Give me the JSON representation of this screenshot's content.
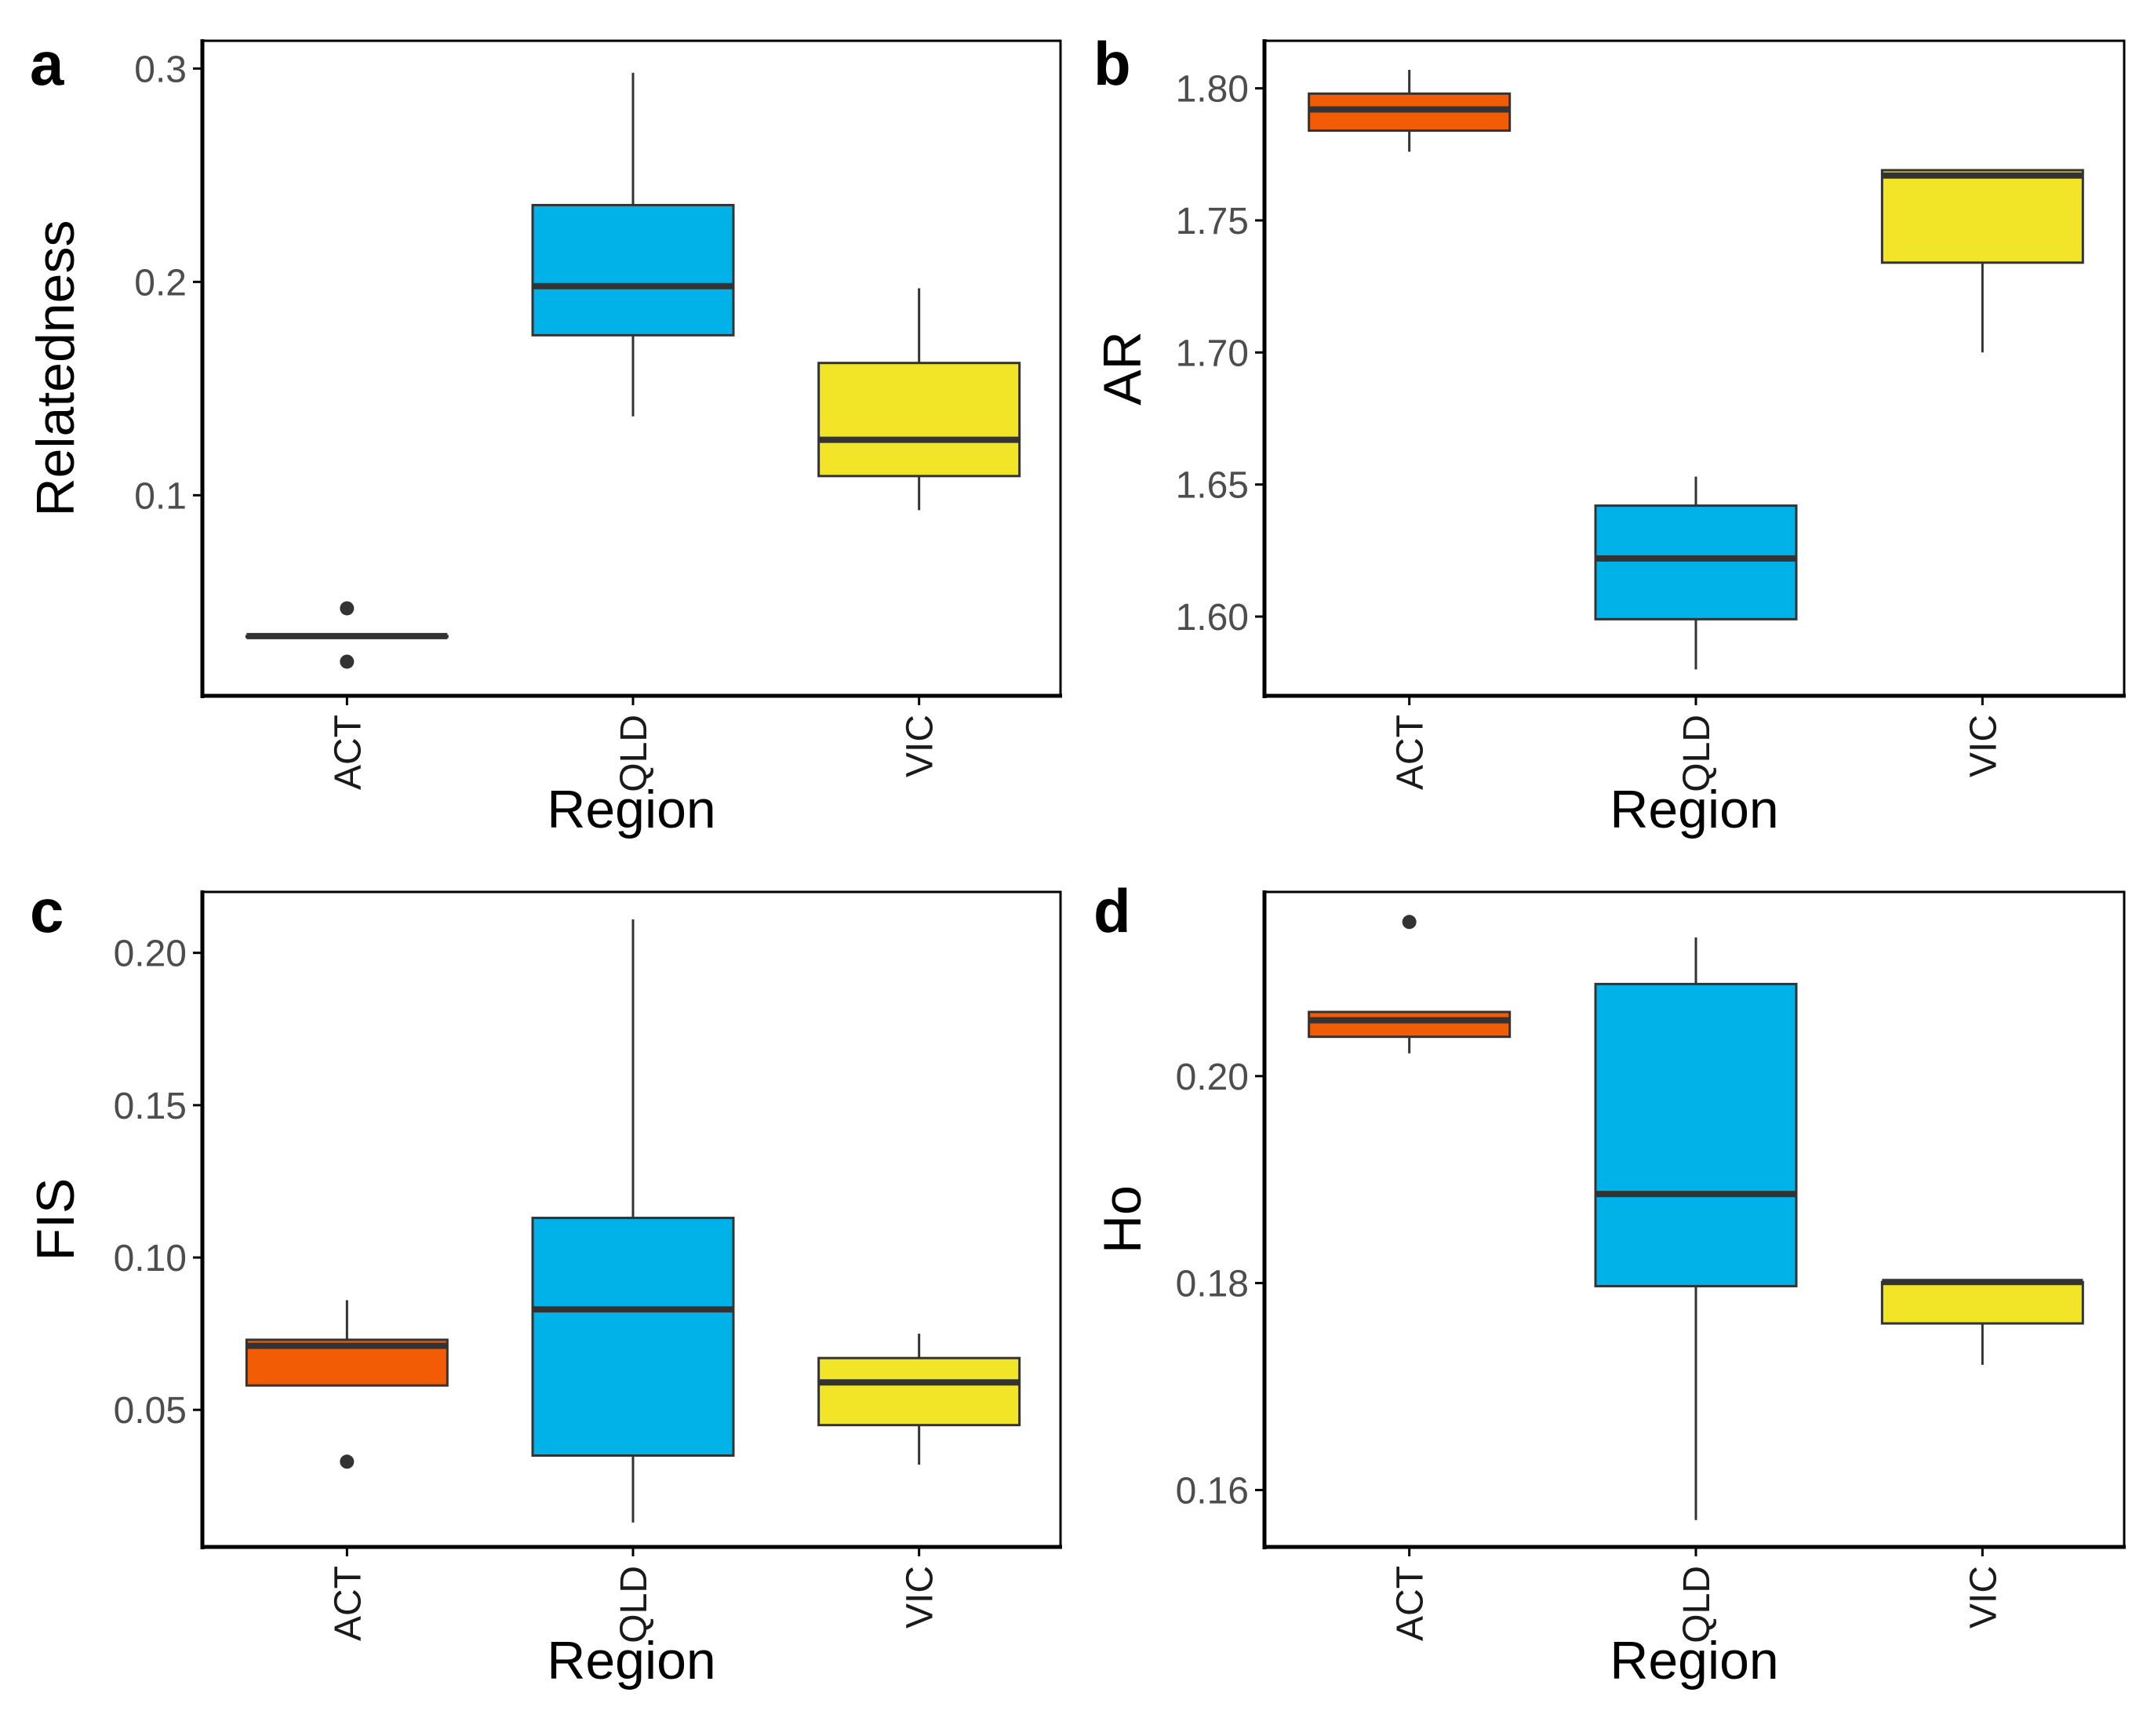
{
  "figure": {
    "panels_label": "Four box-plot panels (a–d)"
  },
  "colors": {
    "ACT": "#f25c05",
    "QLD": "#00b2e8",
    "VIC": "#f2e527",
    "median_line": "#333333",
    "whisker": "#333333",
    "axis": "#000000"
  },
  "chart_data": [
    {
      "panel": "a",
      "type": "box",
      "xlabel": "Region",
      "ylabel": "Relatedness",
      "categories": [
        "ACT",
        "QLD",
        "VIC"
      ],
      "ylim": [
        0.006,
        0.313
      ],
      "yticks": [
        0.1,
        0.2,
        0.3
      ],
      "ytick_labels": [
        "0.1",
        "0.2",
        "0.3"
      ],
      "grid": false,
      "boxes": [
        {
          "category": "ACT",
          "min": 0.034,
          "q1": 0.034,
          "median": 0.034,
          "q3": 0.034,
          "max": 0.034,
          "outliers": [
            0.047,
            0.022
          ]
        },
        {
          "category": "QLD",
          "min": 0.137,
          "q1": 0.175,
          "median": 0.198,
          "q3": 0.236,
          "max": 0.298,
          "outliers": []
        },
        {
          "category": "VIC",
          "min": 0.093,
          "q1": 0.109,
          "median": 0.126,
          "q3": 0.162,
          "max": 0.197,
          "outliers": []
        }
      ]
    },
    {
      "panel": "b",
      "type": "box",
      "xlabel": "Region",
      "ylabel": "AR",
      "categories": [
        "ACT",
        "QLD",
        "VIC"
      ],
      "ylim": [
        1.57,
        1.818
      ],
      "yticks": [
        1.6,
        1.65,
        1.7,
        1.75,
        1.8
      ],
      "ytick_labels": [
        "1.60",
        "1.65",
        "1.70",
        "1.75",
        "1.80"
      ],
      "grid": false,
      "boxes": [
        {
          "category": "ACT",
          "min": 1.776,
          "q1": 1.784,
          "median": 1.792,
          "q3": 1.798,
          "max": 1.807,
          "outliers": []
        },
        {
          "category": "QLD",
          "min": 1.58,
          "q1": 1.599,
          "median": 1.622,
          "q3": 1.642,
          "max": 1.653,
          "outliers": []
        },
        {
          "category": "VIC",
          "min": 1.7,
          "q1": 1.734,
          "median": 1.767,
          "q3": 1.769,
          "max": 1.769,
          "outliers": []
        }
      ]
    },
    {
      "panel": "c",
      "type": "box",
      "xlabel": "Region",
      "ylabel": "FIS",
      "categories": [
        "ACT",
        "QLD",
        "VIC"
      ],
      "ylim": [
        0.005,
        0.22
      ],
      "yticks": [
        0.05,
        0.1,
        0.15,
        0.2
      ],
      "ytick_labels": [
        "0.05",
        "0.10",
        "0.15",
        "0.20"
      ],
      "grid": false,
      "boxes": [
        {
          "category": "ACT",
          "min": 0.058,
          "q1": 0.058,
          "median": 0.071,
          "q3": 0.073,
          "max": 0.086,
          "outliers": [
            0.033
          ]
        },
        {
          "category": "QLD",
          "min": 0.013,
          "q1": 0.035,
          "median": 0.083,
          "q3": 0.113,
          "max": 0.211,
          "outliers": []
        },
        {
          "category": "VIC",
          "min": 0.032,
          "q1": 0.045,
          "median": 0.059,
          "q3": 0.067,
          "max": 0.075,
          "outliers": []
        }
      ]
    },
    {
      "panel": "d",
      "type": "box",
      "xlabel": "Region",
      "ylabel": "Ho",
      "categories": [
        "ACT",
        "QLD",
        "VIC"
      ],
      "ylim": [
        0.1545,
        0.2178
      ],
      "yticks": [
        0.16,
        0.18,
        0.2
      ],
      "ytick_labels": [
        "0.16",
        "0.18",
        "0.20"
      ],
      "grid": false,
      "boxes": [
        {
          "category": "ACT",
          "min": 0.2022,
          "q1": 0.2038,
          "median": 0.2054,
          "q3": 0.2062,
          "max": 0.2062,
          "outliers": [
            0.2149
          ]
        },
        {
          "category": "QLD",
          "min": 0.1571,
          "q1": 0.1797,
          "median": 0.1886,
          "q3": 0.2089,
          "max": 0.2134,
          "outliers": []
        },
        {
          "category": "VIC",
          "min": 0.1721,
          "q1": 0.1761,
          "median": 0.1801,
          "q3": 0.1801,
          "max": 0.1801,
          "outliers": []
        }
      ]
    }
  ]
}
